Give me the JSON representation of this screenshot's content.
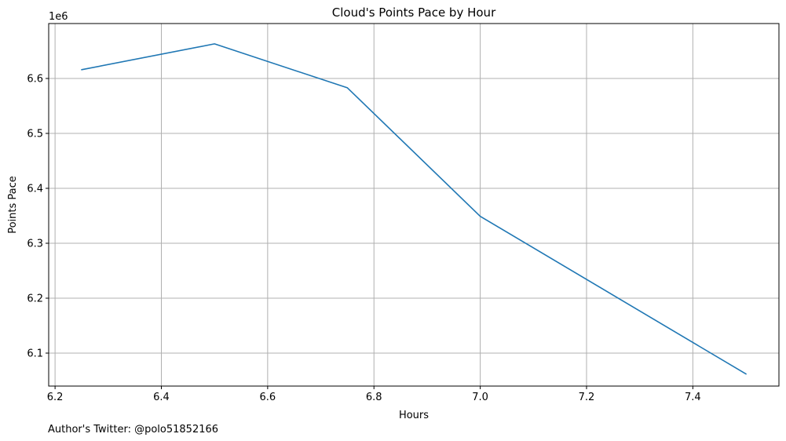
{
  "chart_data": {
    "type": "line",
    "title": "Cloud's Points Pace by Hour",
    "xlabel": "Hours",
    "ylabel": "Points Pace",
    "y_offset_label": "1e6",
    "y_scale_factor": 1000000,
    "xlim": [
      6.188,
      7.562
    ],
    "ylim": [
      6040000,
      6700000
    ],
    "x_ticks": [
      6.2,
      6.4,
      6.6,
      6.8,
      7.0,
      7.2,
      7.4
    ],
    "x_tick_labels": [
      "6.2",
      "6.4",
      "6.6",
      "6.8",
      "7.0",
      "7.2",
      "7.4"
    ],
    "y_ticks": [
      6100000,
      6200000,
      6300000,
      6400000,
      6500000,
      6600000
    ],
    "y_tick_labels": [
      "6.1",
      "6.2",
      "6.3",
      "6.4",
      "6.5",
      "6.6"
    ],
    "grid": true,
    "series": [
      {
        "color": "#1f77b4",
        "x": [
          6.25,
          6.5,
          6.75,
          7.0,
          7.5
        ],
        "values": [
          6616000,
          6663000,
          6583000,
          6349000,
          6062000
        ]
      }
    ]
  },
  "footer": {
    "text": "Author's Twitter: @polo51852166"
  },
  "colors": {
    "line": "#1f77b4",
    "grid": "#b0b0b0",
    "axes": "#000000"
  }
}
